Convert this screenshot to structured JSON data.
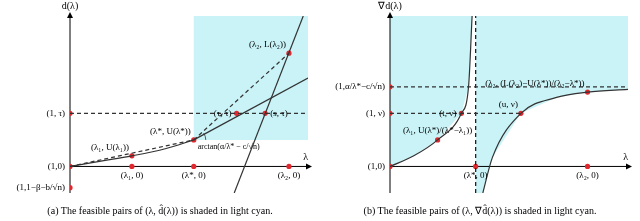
{
  "chart_data": [
    {
      "type": "scatter",
      "title": "(a) The feasible pairs of (λ, d̂(λ)) is shaded in light cyan.",
      "x_label": "λ",
      "y_label": "d̂(λ)",
      "xlim": [
        0,
        10
      ],
      "ylim": [
        -1.5,
        8.5
      ],
      "tick_labels": false,
      "grid": false,
      "regions": [
        {
          "color": "#c9f3f7",
          "x": [
            5.2,
            5.2,
            10,
            10
          ],
          "y": [
            1.5,
            8.5,
            8.5,
            1.5
          ]
        }
      ],
      "lines": [
        {
          "color": "#333333",
          "line_style": "solid",
          "x": [
            0,
            1.3,
            2.6,
            4,
            5.2
          ],
          "y": [
            0,
            0.3,
            0.6,
            1.0,
            1.5
          ]
        },
        {
          "color": "#333333",
          "line_style": "solid",
          "x": [
            5.2,
            10
          ],
          "y": [
            1.5,
            5.0
          ]
        },
        {
          "color": "#333333",
          "line_style": "solid",
          "x": [
            6.9,
            9.8
          ],
          "y": [
            -1.5,
            8.5
          ]
        },
        {
          "color": "#333333",
          "line_style": "dashed",
          "x": [
            0,
            5.2
          ],
          "y": [
            0,
            1.5
          ]
        },
        {
          "color": "#333333",
          "line_style": "dashed",
          "x": [
            5.2,
            9.2
          ],
          "y": [
            1.5,
            6.4
          ]
        },
        {
          "color": "#333333",
          "line_style": "dashed",
          "x": [
            0,
            10
          ],
          "y": [
            3,
            3
          ]
        }
      ],
      "points": {
        "color": "#e0282e",
        "x": [
          0,
          2.6,
          5.2,
          9.2,
          0,
          7.0,
          8.2,
          0,
          2.6,
          5.2,
          9.2
        ],
        "y": [
          0,
          0.6,
          1.5,
          6.4,
          3,
          3,
          3,
          -1.2,
          0,
          0,
          0
        ],
        "labels": [
          "(1,0)",
          "(λ₁, U(λ₁))",
          "(λ*, U(λ*))",
          "(λ₂, L(λ₂))",
          "(1, τ)",
          "(τ, τ)",
          "(s, τ)",
          "(1,1−β−b/√n)",
          "(λ₁, 0)",
          "(λ*, 0)",
          "(λ₂, 0)"
        ]
      },
      "annotations": [
        {
          "text": "arctan(α/λ* − c/√n)"
        }
      ]
    },
    {
      "type": "scatter",
      "title": "(b) The feasible pairs of (λ, ∇d̂(λ)) is shaded in light cyan.",
      "x_label": "λ",
      "y_label": "∇d̂(λ)",
      "xlim": [
        0,
        10
      ],
      "ylim": [
        -1.5,
        8.5
      ],
      "tick_labels": false,
      "grid": false,
      "regions": [
        {
          "color": "#c9f3f7",
          "x": [
            0,
            1,
            2,
            3,
            3.3,
            3.45,
            0
          ],
          "y": [
            0,
            0.6,
            1.5,
            3,
            4.5,
            8.5,
            8.5
          ]
        },
        {
          "color": "#c9f3f7",
          "x": [
            3.6,
            3.9,
            4.3,
            5.5,
            7,
            8.3,
            10,
            10,
            3.6
          ],
          "y": [
            -1.5,
            -1.5,
            0.5,
            3,
            3.9,
            4.2,
            4.35,
            8.5,
            8.5
          ]
        }
      ],
      "lines": [
        {
          "color": "#333333",
          "line_style": "solid",
          "x": [
            0,
            1,
            2,
            3,
            3.3,
            3.45
          ],
          "y": [
            0,
            0.6,
            1.5,
            3,
            4.5,
            8.5
          ]
        },
        {
          "color": "#333333",
          "line_style": "solid",
          "x": [
            3.9,
            4.3,
            5.5,
            7,
            8.3,
            10
          ],
          "y": [
            -1.5,
            0.5,
            3,
            3.9,
            4.2,
            4.35
          ]
        },
        {
          "color": "#333333",
          "line_style": "dashed",
          "x": [
            0,
            5.5
          ],
          "y": [
            3,
            3
          ]
        },
        {
          "color": "#333333",
          "line_style": "dashed",
          "x": [
            0,
            10
          ],
          "y": [
            4.5,
            4.5
          ]
        },
        {
          "color": "#111111",
          "line_style": "dashed",
          "x": [
            3.6,
            3.6
          ],
          "y": [
            -1.5,
            8.5
          ]
        }
      ],
      "points": {
        "color": "#e0282e",
        "x": [
          0,
          2,
          3,
          0,
          0,
          5.5,
          8.3,
          3.6,
          8.3
        ],
        "y": [
          0,
          1.5,
          3,
          3,
          4.5,
          3,
          4.2,
          0,
          0
        ],
        "labels": [
          "(1,0)",
          "(λ₁, U(λ*)/(λ*−λ₁))",
          "(t, ν)",
          "(1, ν)",
          "(1,α/λ*−c/√n)",
          "(u, ν)",
          "(λ₂, (L(λ₂)−U(λ*))/(λ₂−λ*))",
          "(λ*, 0)",
          "(λ₂, 0)"
        ]
      }
    }
  ]
}
